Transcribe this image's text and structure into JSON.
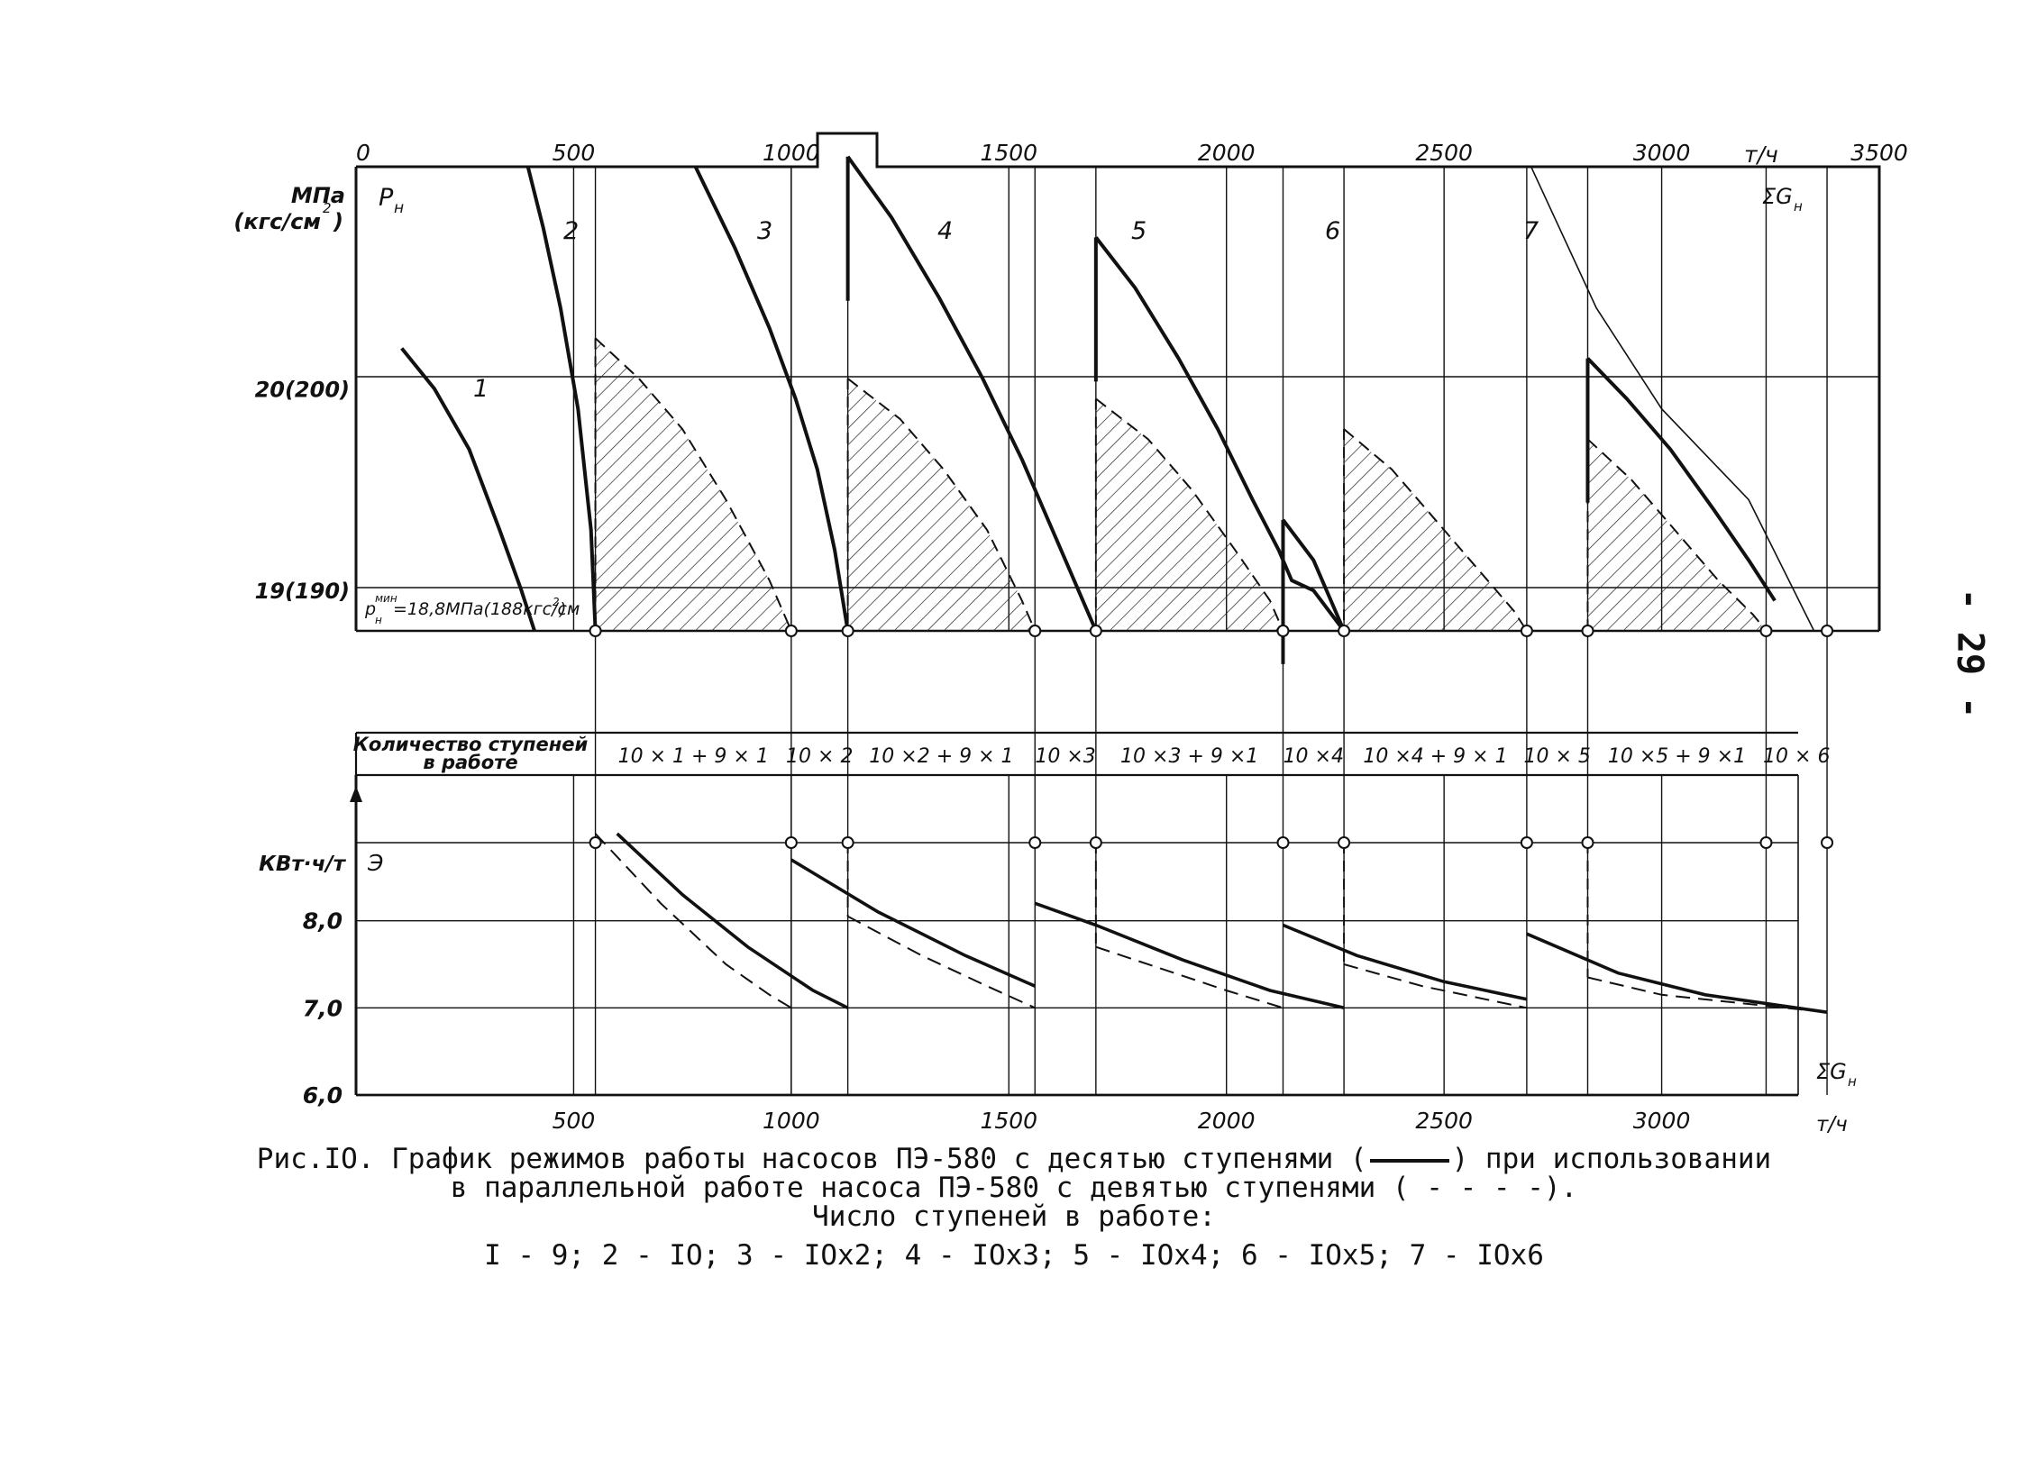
{
  "page_number": "- 29 -",
  "chart_data": [
    {
      "type": "line",
      "x_unit": "т/ч",
      "x_label": "ΣG",
      "x_label_sub": "н",
      "x_ticks": [
        0,
        500,
        1000,
        1500,
        2000,
        2500,
        3000,
        3500
      ],
      "xlim": [
        0,
        3500
      ],
      "y_unit_1": "МПа",
      "y_unit_2": "(кгс/см",
      "y_unit_sup": "2",
      "y_unit_close": ")",
      "y_label": "P",
      "y_label_sub": "н",
      "y_ticks": [
        {
          "value": 20,
          "label": "20(200)"
        },
        {
          "value": 19,
          "label": "19(190)"
        }
      ],
      "ylim": [
        18.8,
        21.1
      ],
      "min_line_label": "p",
      "min_line_sup": "мин",
      "min_line_sub": "н",
      "min_line_rest": "=18,8МПа(188кгс/см",
      "min_line_rest_sup": "2",
      "min_line_rest_close": ")",
      "series": [
        {
          "name": "1",
          "x": [
            105,
            180,
            260,
            330,
            380,
            410
          ],
          "y": [
            20.2,
            20.0,
            19.7,
            19.3,
            19.0,
            18.8
          ]
        },
        {
          "name": "2",
          "x": [
            395,
            430,
            470,
            510,
            540,
            550
          ],
          "y": [
            21.1,
            20.8,
            20.4,
            19.9,
            19.3,
            18.8
          ]
        },
        {
          "name": "3",
          "x": [
            780,
            870,
            950,
            1010,
            1060,
            1100,
            1130
          ],
          "y": [
            21.1,
            20.7,
            20.3,
            19.95,
            19.6,
            19.2,
            18.8
          ]
        },
        {
          "name": "4",
          "x": [
            1130,
            1230,
            1340,
            1440,
            1530,
            1600,
            1670,
            1700
          ],
          "y": [
            21.15,
            20.85,
            20.45,
            20.05,
            19.65,
            19.3,
            18.95,
            18.8
          ]
        },
        {
          "name": "5",
          "x": [
            1700,
            1790,
            1890,
            1980,
            2060,
            2120,
            2150,
            2200,
            2270
          ],
          "y": [
            20.75,
            20.5,
            20.15,
            19.8,
            19.45,
            19.2,
            19.05,
            19.0,
            18.8
          ]
        },
        {
          "name": "6",
          "x": [
            2130,
            2200,
            2270
          ],
          "y": [
            19.35,
            19.15,
            18.8
          ]
        },
        {
          "name": "7",
          "x": [
            2830,
            2920,
            3020,
            3120,
            3200,
            3260
          ],
          "y": [
            20.15,
            19.95,
            19.7,
            19.4,
            19.15,
            18.95
          ]
        }
      ],
      "envelope_x": [
        1550,
        2000,
        2400,
        2700,
        2850,
        3000,
        3200,
        3350
      ],
      "envelope_y": [
        21.1,
        21.1,
        21.1,
        21.1,
        20.4,
        19.9,
        19.45,
        18.8
      ],
      "hatched_regions": [
        {
          "x": [
            550,
            650,
            750,
            850,
            950,
            1000
          ],
          "y": [
            20.25,
            20.05,
            19.8,
            19.45,
            19.05,
            18.8
          ]
        },
        {
          "x": [
            1130,
            1250,
            1350,
            1450,
            1530,
            1560
          ],
          "y": [
            20.05,
            19.85,
            19.6,
            19.3,
            18.95,
            18.8
          ]
        },
        {
          "x": [
            1700,
            1820,
            1920,
            2020,
            2100,
            2130
          ],
          "y": [
            19.95,
            19.75,
            19.5,
            19.2,
            18.95,
            18.8
          ]
        },
        {
          "x": [
            2270,
            2380,
            2480,
            2580,
            2660,
            2690
          ],
          "y": [
            19.8,
            19.6,
            19.35,
            19.1,
            18.9,
            18.8
          ]
        },
        {
          "x": [
            2830,
            2930,
            3030,
            3130,
            3210,
            3240
          ],
          "y": [
            19.75,
            19.55,
            19.3,
            19.05,
            18.88,
            18.8
          ]
        }
      ],
      "switch_points_x": [
        550,
        1000,
        1130,
        1560,
        1700,
        2130,
        2270,
        2690,
        2830,
        3240,
        3380
      ]
    },
    {
      "type": "table",
      "header": [
        "Количество ступеней",
        "в работе"
      ],
      "cells": [
        "10 × 1 + 9 × 1",
        "10 × 2",
        "10 ×2 + 9 × 1",
        "10 ×3",
        "10 ×3 + 9 ×1",
        "10 ×4",
        "10 ×4 + 9 × 1",
        "10 × 5",
        "10 ×5 + 9 ×1",
        "10 × 6"
      ]
    },
    {
      "type": "line",
      "y_label": "Э",
      "y_unit": "КВт·ч/т",
      "y_ticks": [
        "8,0",
        "7,0",
        "6,0"
      ],
      "ylim": [
        6.0,
        9.0
      ],
      "x_ticks": [
        500,
        1000,
        1500,
        2000,
        2500,
        3000
      ],
      "x_unit": "т/ч",
      "x_label": "ΣG",
      "x_label_sub": "н",
      "solid_series": [
        {
          "x": [
            600,
            750,
            900,
            1050,
            1130
          ],
          "y": [
            9.0,
            8.3,
            7.7,
            7.2,
            7.0
          ]
        },
        {
          "x": [
            1000,
            1200,
            1400,
            1560
          ],
          "y": [
            8.7,
            8.1,
            7.6,
            7.25
          ]
        },
        {
          "x": [
            1560,
            1700,
            1900,
            2100,
            2270
          ],
          "y": [
            8.2,
            7.95,
            7.55,
            7.2,
            7.0
          ]
        },
        {
          "x": [
            2130,
            2300,
            2500,
            2690
          ],
          "y": [
            7.95,
            7.6,
            7.3,
            7.1
          ]
        },
        {
          "x": [
            2690,
            2900,
            3100,
            3380
          ],
          "y": [
            7.85,
            7.4,
            7.15,
            6.95
          ]
        }
      ],
      "dashed_series": [
        {
          "x": [
            550,
            700,
            850,
            950,
            1000
          ],
          "y": [
            9.0,
            8.2,
            7.5,
            7.15,
            7.0
          ]
        },
        {
          "x": [
            1130,
            1300,
            1450,
            1560
          ],
          "y": [
            8.05,
            7.6,
            7.25,
            7.0
          ]
        },
        {
          "x": [
            1700,
            1850,
            2000,
            2130
          ],
          "y": [
            7.7,
            7.45,
            7.2,
            7.0
          ]
        },
        {
          "x": [
            2270,
            2450,
            2690
          ],
          "y": [
            7.5,
            7.25,
            7.0
          ]
        },
        {
          "x": [
            2830,
            3000,
            3380
          ],
          "y": [
            7.35,
            7.15,
            6.95
          ]
        }
      ]
    }
  ],
  "caption": {
    "line1": "Рис.IO. График режимов работы насосов ПЭ-580 с десятью ступенями (",
    "line1_end": ") при использовании",
    "line2": "в параллельной работе насоса ПЭ-580 с девятью ступенями ( - - - -).",
    "line3": "Число ступеней в работе:",
    "line4": "I - 9; 2 - IO; 3 - IOx2; 4 - IOx3; 5 - IOx4; 6 - IOx5; 7 - IOx6"
  }
}
